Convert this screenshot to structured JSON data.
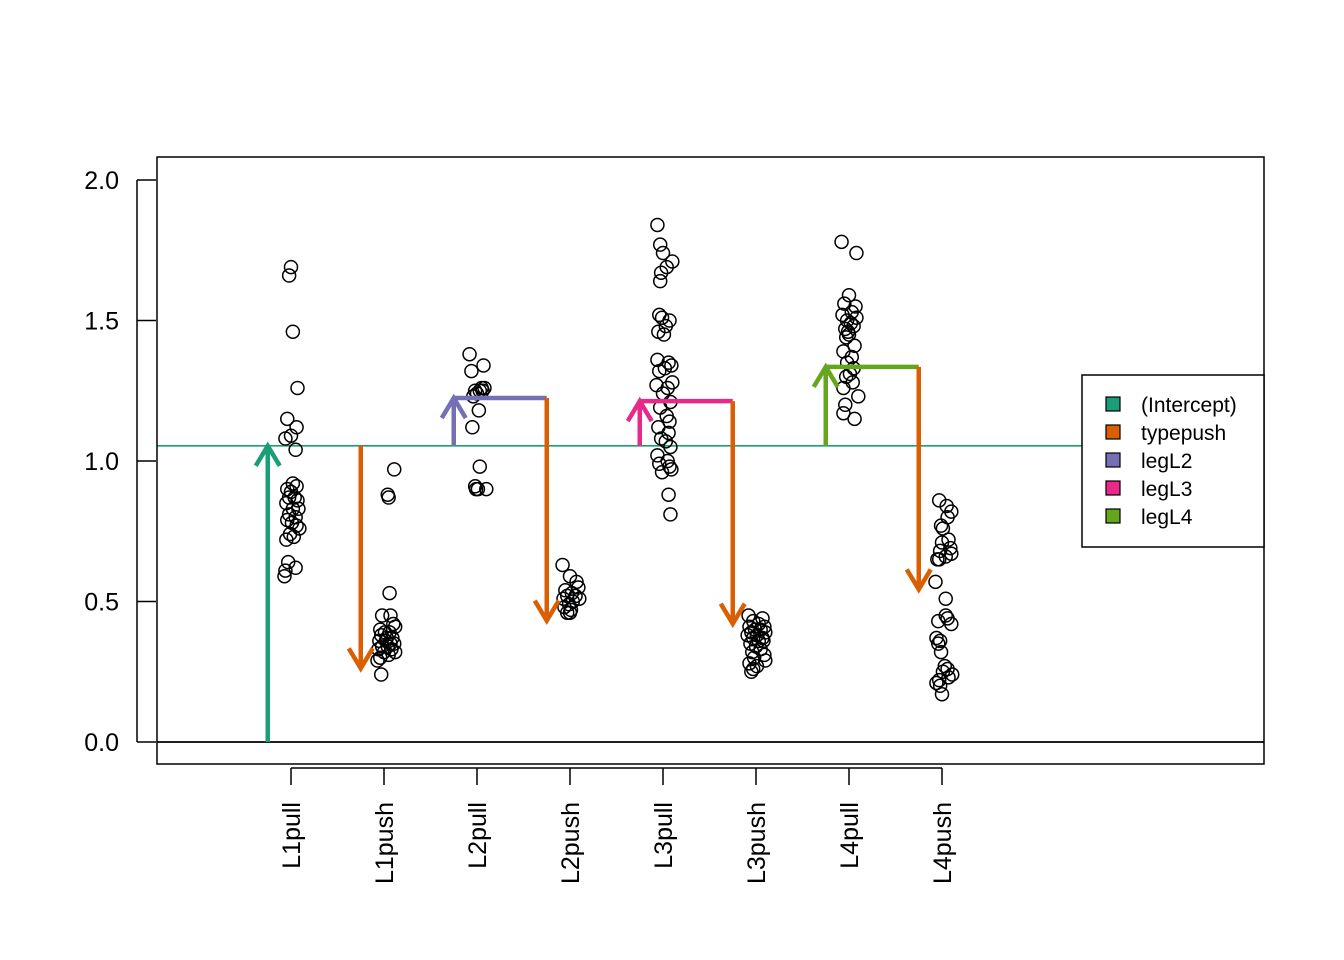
{
  "chart_data": {
    "type": "scatter",
    "categories": [
      "L1pull",
      "L1push",
      "L2pull",
      "L2push",
      "L3pull",
      "L3push",
      "L4pull",
      "L4push"
    ],
    "ylim": [
      -0.08,
      2.08
    ],
    "yticks": [
      0.0,
      0.5,
      1.0,
      1.5,
      2.0
    ],
    "ytick_labels": [
      "0.0",
      "0.5",
      "1.0",
      "1.5",
      "2.0"
    ],
    "grid": false,
    "legend": {
      "placement": "right",
      "entries": [
        {
          "label": "(Intercept)",
          "color": "#1B9E77"
        },
        {
          "label": "typepush",
          "color": "#D95F02"
        },
        {
          "label": "legL2",
          "color": "#7570B3"
        },
        {
          "label": "legL3",
          "color": "#E7298A"
        },
        {
          "label": "legL4",
          "color": "#66A61E"
        }
      ]
    },
    "reference_lines": [
      {
        "y": 0.0,
        "color": "#000000"
      },
      {
        "y": 1.054,
        "color": "#1B9E77"
      }
    ],
    "coefficient_arrows": [
      {
        "term": "(Intercept)",
        "group": "L1pull",
        "x_offset": -0.25,
        "y_from": 0.0,
        "y_to": 1.054,
        "color": "#1B9E77"
      },
      {
        "term": "typepush",
        "group": "L1push",
        "x_offset": -0.25,
        "y_from": 1.054,
        "y_to": 0.262,
        "color": "#D95F02"
      },
      {
        "term": "legL2",
        "group": "L2pull",
        "x_offset": -0.25,
        "y_from": 1.054,
        "y_to": 1.224,
        "color": "#7570B3",
        "connector_to_group": "L2push"
      },
      {
        "term": "typepush",
        "group": "L2push",
        "x_offset": -0.25,
        "y_from": 1.224,
        "y_to": 0.432,
        "color": "#D95F02"
      },
      {
        "term": "legL3",
        "group": "L3pull",
        "x_offset": -0.25,
        "y_from": 1.054,
        "y_to": 1.213,
        "color": "#E7298A",
        "connector_to_group": "L3push"
      },
      {
        "term": "typepush",
        "group": "L3push",
        "x_offset": -0.25,
        "y_from": 1.213,
        "y_to": 0.421,
        "color": "#D95F02"
      },
      {
        "term": "legL4",
        "group": "L4pull",
        "x_offset": -0.25,
        "y_from": 1.054,
        "y_to": 1.335,
        "color": "#66A61E",
        "connector_to_group": "L4push"
      },
      {
        "term": "typepush",
        "group": "L4push",
        "x_offset": -0.25,
        "y_from": 1.335,
        "y_to": 0.543,
        "color": "#D95F02"
      }
    ],
    "series": [
      {
        "group": "L1pull",
        "values": [
          1.69,
          1.66,
          1.46,
          1.26,
          1.15,
          1.12,
          1.09,
          1.08,
          1.04,
          0.92,
          0.91,
          0.9,
          0.89,
          0.87,
          0.87,
          0.86,
          0.85,
          0.83,
          0.83,
          0.81,
          0.8,
          0.79,
          0.78,
          0.77,
          0.76,
          0.74,
          0.73,
          0.72,
          0.64,
          0.62,
          0.61,
          0.59
        ],
        "jitter": [
          0.0,
          -0.02,
          0.02,
          0.07,
          -0.04,
          0.06,
          0.0,
          -0.06,
          0.05,
          0.02,
          0.06,
          -0.04,
          0.0,
          -0.02,
          0.04,
          0.07,
          -0.05,
          0.02,
          0.08,
          -0.02,
          0.05,
          -0.04,
          0.01,
          0.06,
          0.09,
          -0.01,
          0.03,
          -0.05,
          -0.03,
          0.05,
          -0.06,
          -0.07
        ]
      },
      {
        "group": "L1push",
        "values": [
          0.97,
          0.88,
          0.87,
          0.53,
          0.45,
          0.45,
          0.42,
          0.41,
          0.4,
          0.39,
          0.39,
          0.38,
          0.37,
          0.37,
          0.36,
          0.36,
          0.35,
          0.35,
          0.34,
          0.34,
          0.33,
          0.33,
          0.32,
          0.32,
          0.31,
          0.3,
          0.29,
          0.24
        ],
        "jitter": [
          0.11,
          0.04,
          0.05,
          0.06,
          -0.02,
          0.07,
          0.1,
          0.12,
          -0.04,
          0.01,
          0.06,
          -0.03,
          0.03,
          0.09,
          -0.05,
          0.02,
          0.07,
          0.11,
          -0.02,
          0.04,
          0.08,
          -0.06,
          0.0,
          0.12,
          0.05,
          -0.04,
          -0.07,
          -0.03
        ]
      },
      {
        "group": "L2pull",
        "values": [
          1.38,
          1.34,
          1.32,
          1.26,
          1.26,
          1.25,
          1.25,
          1.25,
          1.24,
          1.23,
          1.18,
          1.12,
          0.98,
          0.91,
          0.9,
          0.9,
          0.9
        ],
        "jitter": [
          -0.08,
          0.07,
          -0.06,
          0.05,
          0.08,
          -0.02,
          0.03,
          0.06,
          0.0,
          -0.04,
          0.02,
          -0.05,
          0.03,
          -0.02,
          0.1,
          -0.01,
          0.01
        ]
      },
      {
        "group": "L2push",
        "values": [
          0.63,
          0.59,
          0.57,
          0.55,
          0.54,
          0.53,
          0.52,
          0.52,
          0.51,
          0.51,
          0.5,
          0.49,
          0.48,
          0.47,
          0.46,
          0.46
        ],
        "jitter": [
          -0.08,
          0.0,
          0.07,
          0.09,
          -0.05,
          0.02,
          -0.03,
          0.06,
          0.1,
          -0.07,
          0.03,
          -0.01,
          -0.06,
          0.01,
          -0.03,
          0.0
        ]
      },
      {
        "group": "L3pull",
        "values": [
          1.84,
          1.77,
          1.74,
          1.71,
          1.69,
          1.67,
          1.64,
          1.52,
          1.51,
          1.5,
          1.48,
          1.46,
          1.45,
          1.36,
          1.35,
          1.34,
          1.33,
          1.32,
          1.28,
          1.27,
          1.26,
          1.24,
          1.21,
          1.19,
          1.16,
          1.14,
          1.12,
          1.1,
          1.08,
          1.07,
          1.05,
          1.02,
          1.0,
          0.99,
          0.98,
          0.97,
          0.96,
          0.88,
          0.81
        ],
        "jitter": [
          -0.06,
          -0.03,
          0.0,
          0.1,
          0.04,
          -0.02,
          -0.03,
          -0.04,
          -0.01,
          0.07,
          0.03,
          -0.05,
          0.01,
          -0.06,
          0.06,
          0.09,
          0.02,
          -0.04,
          0.1,
          -0.07,
          0.05,
          0.0,
          0.08,
          -0.03,
          0.04,
          0.07,
          -0.05,
          0.06,
          -0.02,
          0.03,
          0.08,
          -0.06,
          0.05,
          -0.04,
          0.07,
          0.09,
          -0.01,
          0.06,
          0.08
        ]
      },
      {
        "group": "L3push",
        "values": [
          0.45,
          0.44,
          0.43,
          0.42,
          0.41,
          0.41,
          0.4,
          0.4,
          0.39,
          0.39,
          0.38,
          0.38,
          0.37,
          0.37,
          0.36,
          0.36,
          0.35,
          0.34,
          0.33,
          0.32,
          0.31,
          0.3,
          0.29,
          0.28,
          0.27,
          0.26,
          0.25
        ],
        "jitter": [
          -0.08,
          0.07,
          -0.03,
          0.03,
          -0.07,
          0.09,
          -0.01,
          0.05,
          -0.05,
          0.1,
          0.01,
          -0.09,
          0.07,
          -0.03,
          0.03,
          0.08,
          -0.06,
          0.0,
          0.05,
          -0.04,
          0.09,
          -0.02,
          0.1,
          -0.07,
          0.01,
          -0.03,
          -0.05
        ]
      },
      {
        "group": "L4pull",
        "values": [
          1.78,
          1.74,
          1.59,
          1.56,
          1.55,
          1.53,
          1.52,
          1.51,
          1.5,
          1.49,
          1.48,
          1.47,
          1.46,
          1.45,
          1.44,
          1.41,
          1.39,
          1.37,
          1.35,
          1.33,
          1.31,
          1.3,
          1.28,
          1.26,
          1.23,
          1.2,
          1.17,
          1.15
        ],
        "jitter": [
          -0.08,
          0.08,
          0.0,
          -0.05,
          0.07,
          0.03,
          -0.07,
          0.08,
          -0.02,
          0.02,
          0.05,
          -0.04,
          -0.01,
          0.0,
          -0.03,
          0.06,
          -0.06,
          0.03,
          -0.02,
          0.05,
          0.01,
          -0.03,
          0.04,
          -0.06,
          0.1,
          -0.04,
          -0.06,
          0.06
        ]
      },
      {
        "group": "L4push",
        "values": [
          0.86,
          0.84,
          0.82,
          0.8,
          0.77,
          0.76,
          0.72,
          0.71,
          0.69,
          0.68,
          0.67,
          0.66,
          0.65,
          0.65,
          0.57,
          0.51,
          0.45,
          0.44,
          0.43,
          0.42,
          0.37,
          0.36,
          0.35,
          0.32,
          0.27,
          0.26,
          0.25,
          0.24,
          0.23,
          0.22,
          0.21,
          0.2,
          0.17
        ],
        "jitter": [
          -0.03,
          0.05,
          0.1,
          0.06,
          -0.01,
          0.01,
          0.07,
          0.0,
          0.09,
          -0.02,
          0.1,
          0.04,
          -0.05,
          -0.03,
          -0.07,
          0.04,
          0.04,
          0.06,
          -0.04,
          0.1,
          -0.06,
          -0.02,
          -0.04,
          -0.01,
          0.03,
          0.06,
          0.01,
          0.11,
          0.07,
          -0.03,
          -0.06,
          -0.02,
          0.0
        ]
      }
    ]
  }
}
